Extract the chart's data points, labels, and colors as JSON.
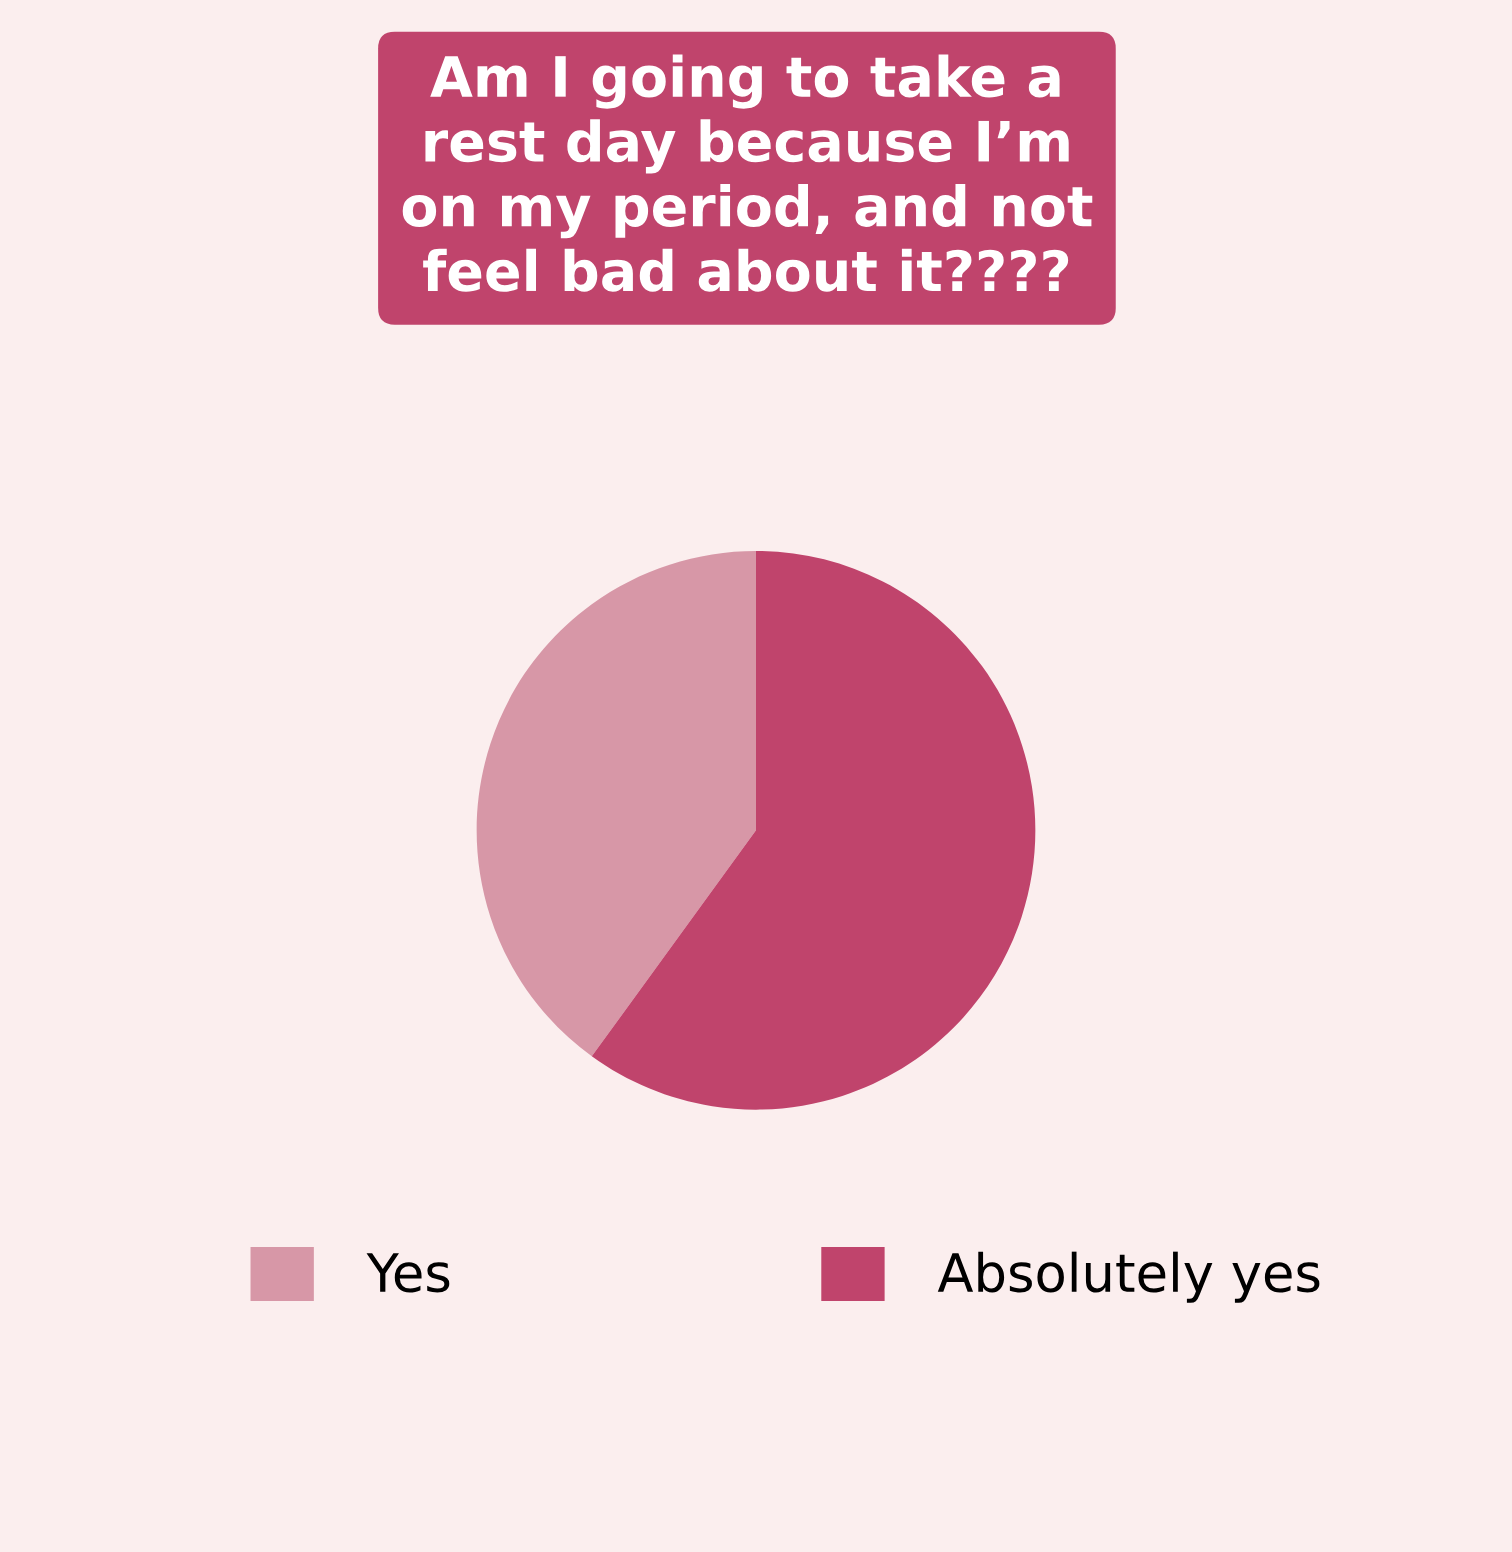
{
  "chart_data": {
    "type": "pie",
    "title": "Am I going to take a\nrest day because I’m\non my period, and not\nfeel bad about it????",
    "categories": [
      "Yes",
      "Absolutely yes"
    ],
    "values": [
      40,
      60
    ],
    "colors": [
      "#d797a7",
      "#c0446c"
    ],
    "legend": "bottom"
  }
}
